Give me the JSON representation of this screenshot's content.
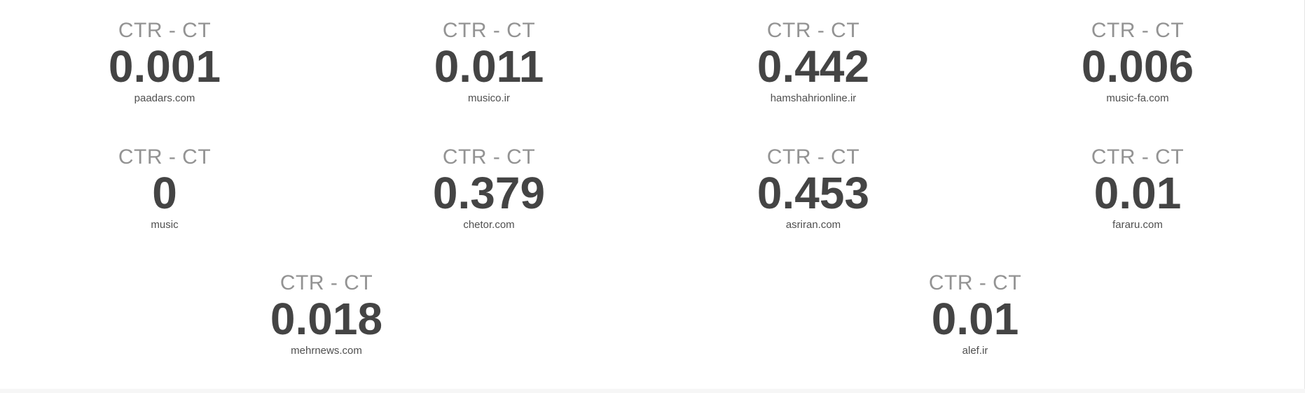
{
  "colors": {
    "label": "#939393",
    "value": "#444444",
    "site": "#4f4f4f",
    "background": "#ffffff"
  },
  "metrics": [
    {
      "label": "CTR - CT",
      "value": "0.001",
      "site": "paadars.com"
    },
    {
      "label": "CTR - CT",
      "value": "0.011",
      "site": "musico.ir"
    },
    {
      "label": "CTR - CT",
      "value": "0.442",
      "site": "hamshahrionline.ir"
    },
    {
      "label": "CTR - CT",
      "value": "0.006",
      "site": "music-fa.com"
    },
    {
      "label": "CTR - CT",
      "value": "0",
      "site": "music"
    },
    {
      "label": "CTR - CT",
      "value": "0.379",
      "site": "chetor.com"
    },
    {
      "label": "CTR - CT",
      "value": "0.453",
      "site": "asriran.com"
    },
    {
      "label": "CTR - CT",
      "value": "0.01",
      "site": "fararu.com"
    },
    {
      "label": "CTR - CT",
      "value": "0.018",
      "site": "mehrnews.com"
    },
    {
      "label": "CTR - CT",
      "value": "0.01",
      "site": "alef.ir"
    }
  ]
}
